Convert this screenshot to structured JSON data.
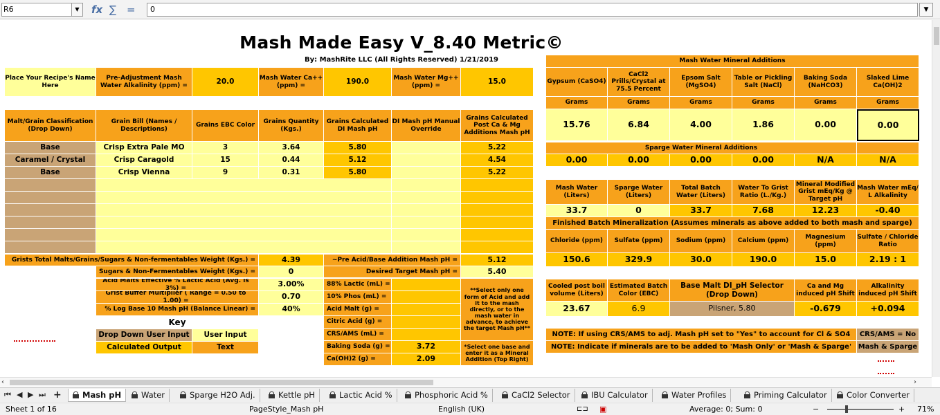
{
  "formula_bar": {
    "cell_ref": "R6",
    "fx": "fx",
    "sigma": "∑",
    "equals": "=",
    "value": "0"
  },
  "title": "Mash Made Easy V_8.40 Metric©",
  "byline": "By: MashRite LLC (All Rights Reserved) 1/21/2019",
  "recipe": {
    "name_label": "Place Your Recipe's Name Here",
    "alk_label": "Pre-Adjustment Mash Water Alkalinity (ppm) =",
    "alk_value": "20.0",
    "ca_label": "Mash Water Ca++ (ppm) =",
    "ca_value": "190.0",
    "mg_label": "Mash Water Mg++ (ppm) =",
    "mg_value": "15.0"
  },
  "grain_headers": [
    "Malt/Grain Classification (Drop Down)",
    "Grain Bill (Names / Descriptions)",
    "Grains EBC Color",
    "Grains Quantity (Kgs.)",
    "Grains Calculated DI Mash pH",
    "DI Mash pH Manual Override",
    "Grains Calculated Post Ca & Mg Additions Mash pH"
  ],
  "grains": [
    {
      "cls": "Base",
      "name": "Crisp Extra Pale MO",
      "ebc": "3",
      "qty": "3.64",
      "di": "5.80",
      "ovr": "",
      "post": "5.22"
    },
    {
      "cls": "Caramel / Crystal",
      "name": "Crisp Caragold",
      "ebc": "15",
      "qty": "0.44",
      "di": "5.12",
      "ovr": "",
      "post": "4.54"
    },
    {
      "cls": "Base",
      "name": "Crisp Vienna",
      "ebc": "9",
      "qty": "0.31",
      "di": "5.80",
      "ovr": "",
      "post": "5.22"
    }
  ],
  "totals": {
    "grists_label": "Grists Total Malts/Grains/Sugars & Non-fermentables Weight (Kgs.) =",
    "grists_value": "4.39",
    "pre_acid_label": "~Pre Acid/Base Addition Mash pH =",
    "pre_acid_value": "5.12",
    "sugars_label": "Sugars & Non-Fermentables Weight (Kgs.) =",
    "sugars_value": "0",
    "target_label": "Desired Target Mash pH =",
    "target_value": "5.40",
    "lactic_eff_label": "Acid Malts Effective % Lactic Acid (Avg. is 3%) =",
    "lactic_eff_value": "3.00%",
    "buffer_label": "Grist Buffer Multiplier ( Range = 0.50 to 1.00) =",
    "buffer_value": "0.70",
    "log_label": "% Log Base 10 Mash pH (Balance Linear) =",
    "log_value": "40%"
  },
  "acids": [
    {
      "label": "88% Lactic (mL) =",
      "value": ""
    },
    {
      "label": "10% Phos (mL) =",
      "value": ""
    },
    {
      "label": "Acid Malt (g) =",
      "value": ""
    },
    {
      "label": "Citric Acid (g) =",
      "value": ""
    },
    {
      "label": "CRS/AMS (mL) =",
      "value": ""
    },
    {
      "label": "Baking Soda (g) =",
      "value": "3.72"
    },
    {
      "label": "Ca(OH)2 (g) =",
      "value": "2.09"
    }
  ],
  "acid_note": "**Select only one form of Acid and add it to the mash directly, or to the mash water in advance, to achieve the target Mash pH**",
  "base_note": "*Select one base and enter it as a Mineral Addition (Top Right)",
  "key": {
    "title": "Key",
    "dd_label": "Drop Down User Input",
    "ui_label": "User Input",
    "co_label": "Calculated Output",
    "text_label": "Text"
  },
  "minerals": {
    "title": "Mash Water Mineral Additions",
    "headers": [
      "Gypsum (CaSO4)",
      "CaCl2 Prills/Crystal at 75.5 Percent",
      "Epsom Salt (MgSO4)",
      "Table or Pickling Salt (NaCl)",
      "Baking Soda (NaHCO3)",
      "Slaked Lime Ca(OH)2"
    ],
    "units": [
      "Grams",
      "Grams",
      "Grams",
      "Grams",
      "Grams",
      "Grams"
    ],
    "values": [
      "15.76",
      "6.84",
      "4.00",
      "1.86",
      "0.00",
      "0.00"
    ],
    "sparge_title": "Sparge Water Mineral Additions",
    "sparge_values": [
      "0.00",
      "0.00",
      "0.00",
      "0.00",
      "N/A",
      "N/A"
    ]
  },
  "water": {
    "headers": [
      "Mash Water (Liters)",
      "Sparge Water (Liters)",
      "Total Batch Water (Liters)",
      "Water To Grist Ratio (L./Kg.)",
      "Mineral Modified Grist mEq/Kg @ Target pH",
      "Mash Water mEq/ L Alkalinity"
    ],
    "values": [
      "33.7",
      "0",
      "33.7",
      "7.68",
      "12.23",
      "-0.40"
    ]
  },
  "finished": {
    "title": "Finished Batch Mineralization (Assumes minerals as above added to both mash and sparge)",
    "headers": [
      "Chloride (ppm)",
      "Sulfate (ppm)",
      "Sodium (ppm)",
      "Calcium (ppm)",
      "Magnesium (ppm)",
      "Sulfate / Chloride Ratio"
    ],
    "values": [
      "150.6",
      "329.9",
      "30.0",
      "190.0",
      "15.0",
      "2.19 : 1"
    ]
  },
  "extras": {
    "headers": [
      "Cooled post boil volume (Liters)",
      "Estimated Batch Color (EBC)",
      "Base Malt DI_pH Selector (Drop Down)",
      "Ca and Mg induced pH Shift",
      "Alkalinity induced pH Shift"
    ],
    "values": [
      "23.67",
      "6.9",
      "Pilsner, 5.80",
      "-0.679",
      "+0.094"
    ]
  },
  "notes": {
    "note1": "NOTE: If using CRS/AMS to adj. Mash pH set to \"Yes\" to account for Cl & SO4",
    "crs_value": "CRS/AMS = No",
    "note2": "NOTE: Indicate if minerals are to be added to 'Mash Only' or 'Mash & Sparge'",
    "mash_value": "Mash & Sparge"
  },
  "tabs": [
    {
      "label": "Mash pH",
      "active": true
    },
    {
      "label": "Water"
    },
    {
      "label": "Sparge H2O Adj."
    },
    {
      "label": "Kettle pH"
    },
    {
      "label": "Lactic Acid %"
    },
    {
      "label": "Phosphoric Acid %"
    },
    {
      "label": "CaCl2 Selector"
    },
    {
      "label": "IBU Calculator"
    },
    {
      "label": "Water Profiles"
    },
    {
      "label": "Priming Calculator"
    },
    {
      "label": "Color Converter"
    }
  ],
  "status": {
    "sheet": "Sheet 1 of 16",
    "style": "PageStyle_Mash pH",
    "lang": "English (UK)",
    "sum": "Average: 0; Sum: 0",
    "zoom": "71%",
    "zoom_minus": "−",
    "zoom_plus": "+"
  },
  "colors": {
    "orange": "#f7a21b",
    "light_yellow": "#ffff9a",
    "gold": "#ffc600",
    "tan": "#c9a476"
  }
}
